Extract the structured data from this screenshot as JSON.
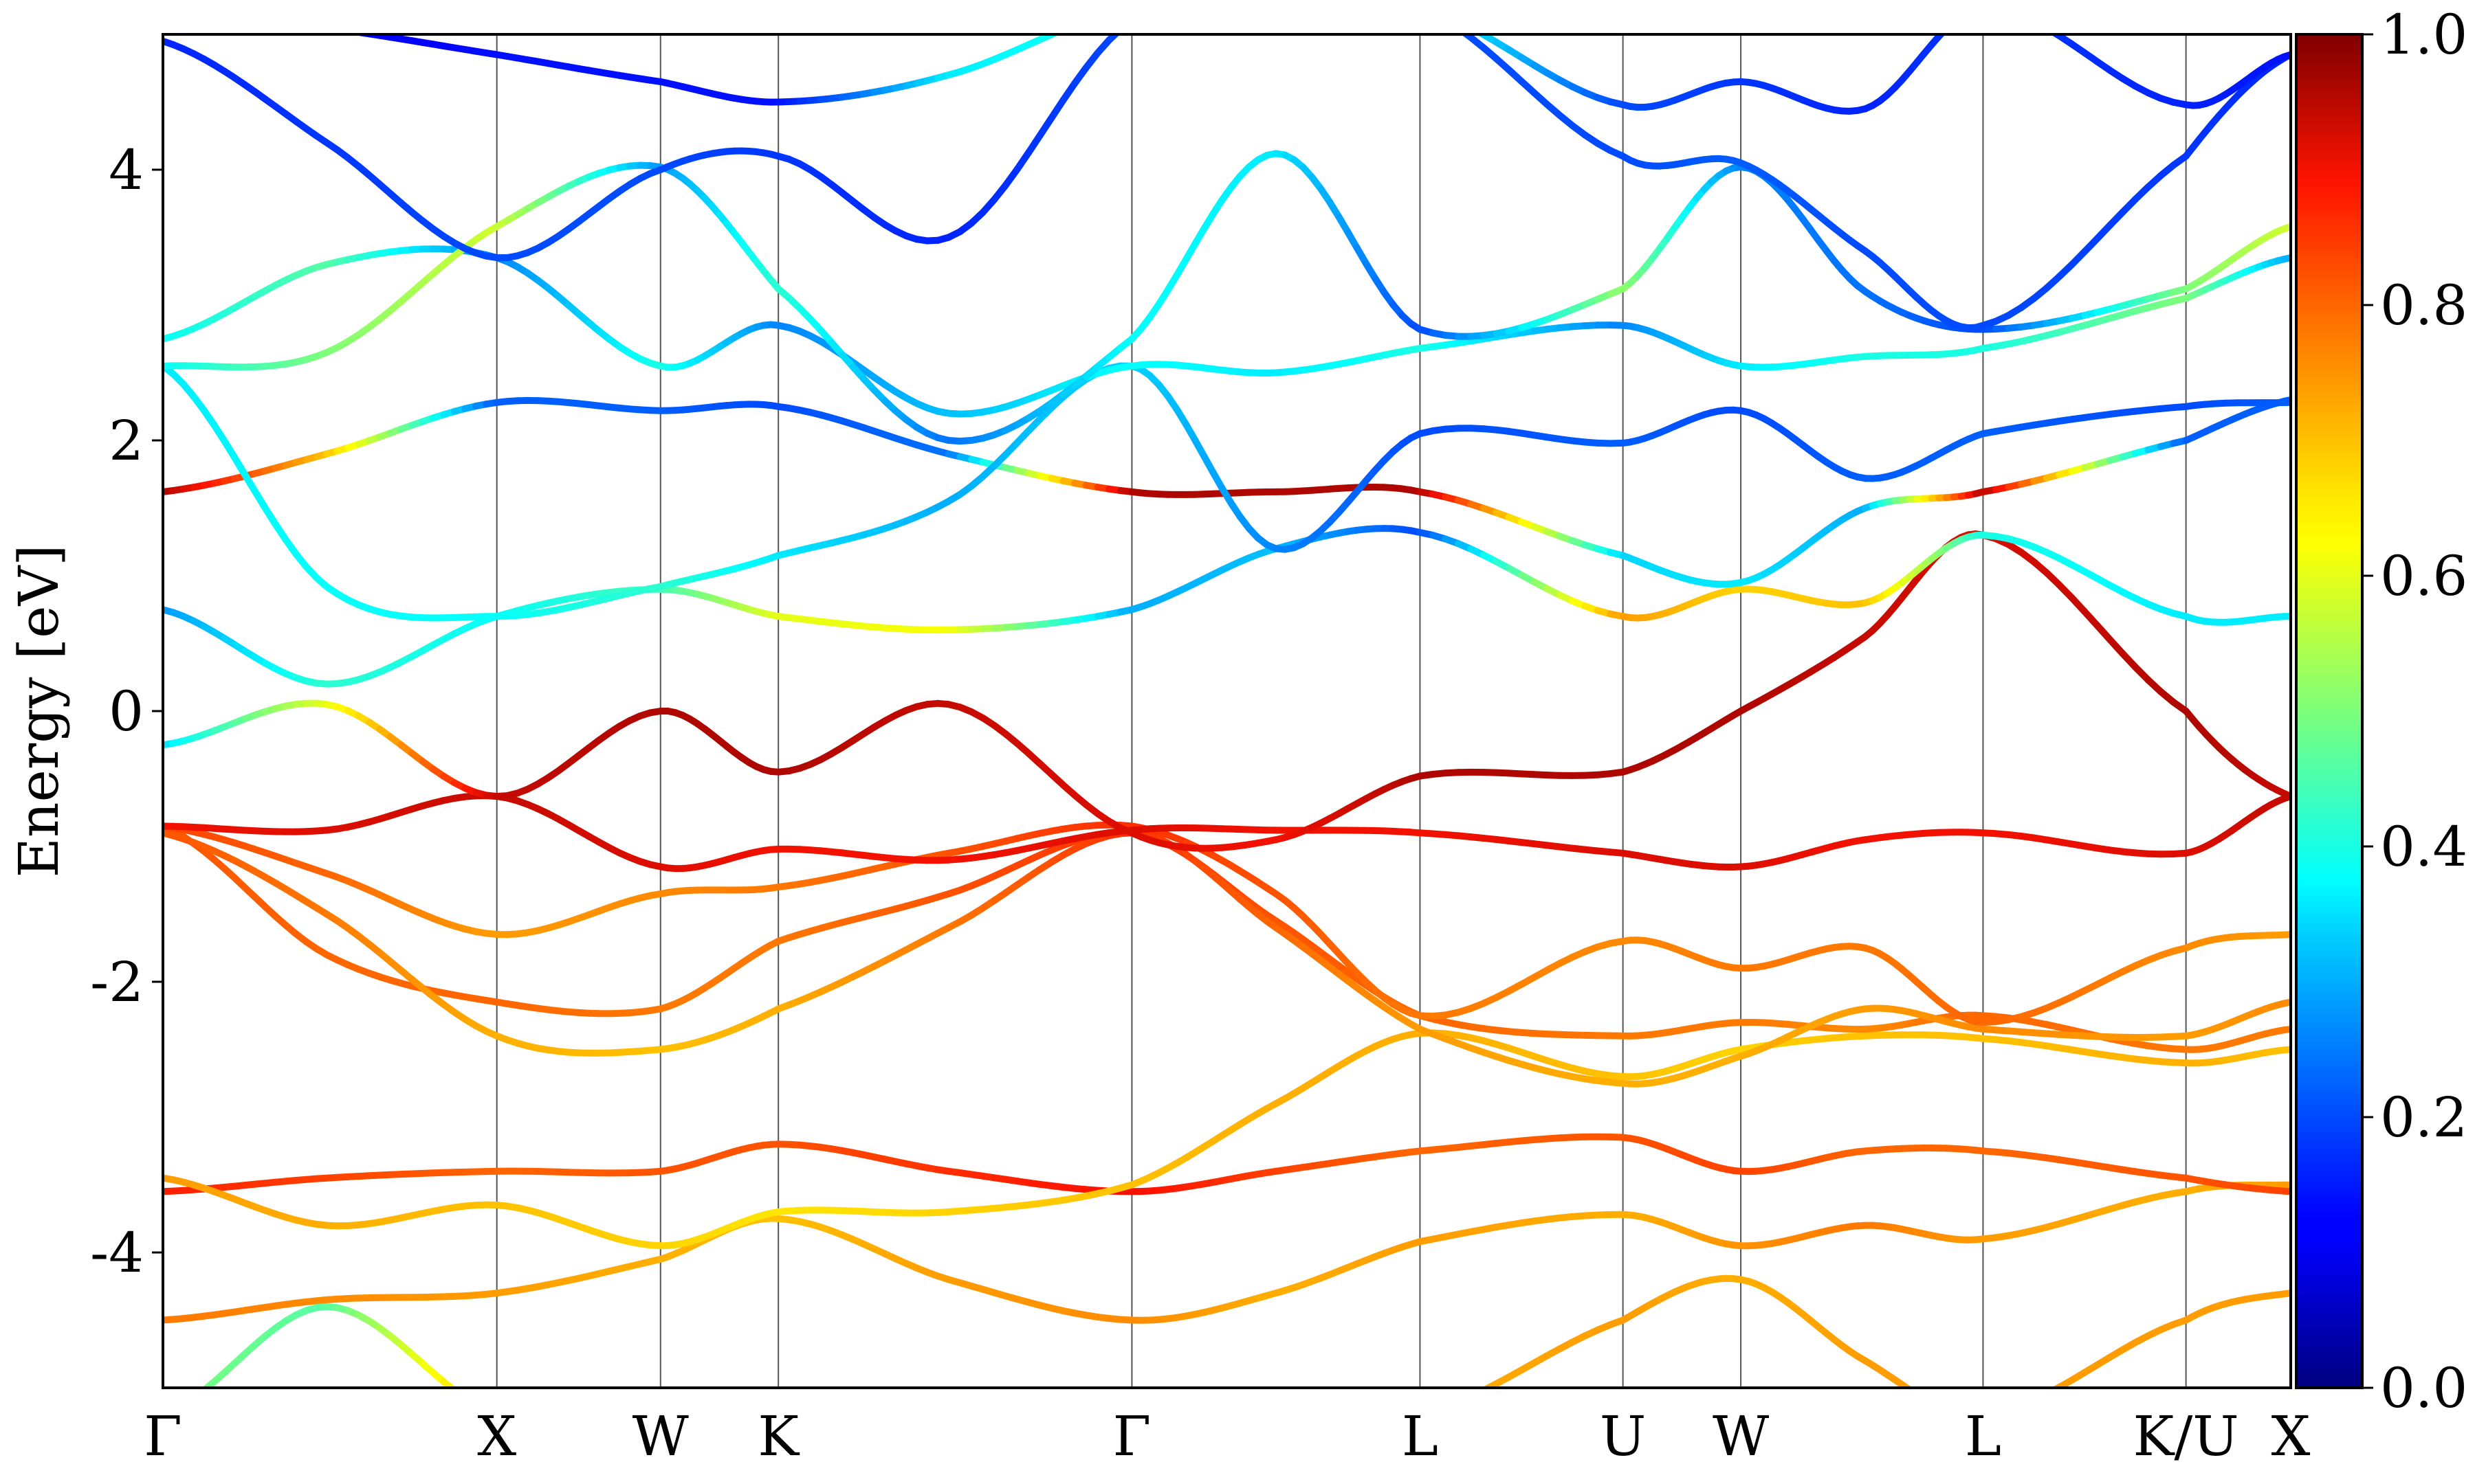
{
  "chart_data": {
    "type": "line",
    "subtype": "band-structure",
    "ylabel": "Energy [eV]",
    "ylim": [
      -5,
      5
    ],
    "yticks": [
      -4,
      -2,
      0,
      2,
      4
    ],
    "ytick_labels": [
      "-4",
      "-2",
      "0",
      "2",
      "4"
    ],
    "x_range": [
      0,
      6.5
    ],
    "high_symmetry_points": [
      {
        "label": "Γ",
        "x": 0.0
      },
      {
        "label": "X",
        "x": 1.02
      },
      {
        "label": "W",
        "x": 1.52
      },
      {
        "label": "K",
        "x": 1.88
      },
      {
        "label": "Γ",
        "x": 2.96
      },
      {
        "label": "L",
        "x": 3.84
      },
      {
        "label": "U",
        "x": 4.46
      },
      {
        "label": "W",
        "x": 4.82
      },
      {
        "label": "L",
        "x": 5.56
      },
      {
        "label": "K/U",
        "x": 6.18
      },
      {
        "label": "X",
        "x": 6.5
      }
    ],
    "colorbar": {
      "range": [
        0.0,
        1.0
      ],
      "ticks": [
        0.0,
        0.2,
        0.4,
        0.6,
        0.8,
        1.0
      ],
      "tick_labels": [
        "0.0",
        "0.2",
        "0.4",
        "0.6",
        "0.8",
        "1.0"
      ],
      "colormap": "jet"
    },
    "bands": [
      {
        "x": [
          0,
          0.5,
          1.02,
          1.52,
          1.88,
          2.4,
          2.96,
          3.4,
          3.84,
          4.46,
          4.82,
          5.2,
          5.56,
          6.18,
          6.5
        ],
        "y": [
          -4.5,
          -4.35,
          -4.3,
          -4.05,
          -3.75,
          -4.2,
          -4.5,
          -4.3,
          -3.92,
          -3.72,
          -3.95,
          -3.8,
          -3.9,
          -3.55,
          -3.5
        ],
        "w": [
          0.78,
          0.76,
          0.74,
          0.72,
          0.7,
          0.74,
          0.76,
          0.72,
          0.74,
          0.72,
          0.75,
          0.78,
          0.74,
          0.72,
          0.74
        ]
      },
      {
        "x": [
          0,
          0.5,
          1.02,
          1.52,
          1.88,
          2.4,
          2.96,
          3.4,
          3.84,
          4.46,
          4.82,
          5.2,
          5.56,
          6.18,
          6.5
        ],
        "y": [
          -3.55,
          -3.45,
          -3.4,
          -3.4,
          -3.2,
          -3.4,
          -3.55,
          -3.4,
          -3.25,
          -3.15,
          -3.4,
          -3.25,
          -3.25,
          -3.45,
          -3.55
        ],
        "w": [
          0.88,
          0.84,
          0.8,
          0.82,
          0.82,
          0.86,
          0.9,
          0.84,
          0.8,
          0.82,
          0.84,
          0.8,
          0.8,
          0.82,
          0.84
        ]
      },
      {
        "x": [
          0,
          0.5,
          1.02,
          1.52,
          1.88,
          2.4,
          2.96,
          3.4,
          3.84,
          4.46,
          4.82,
          5.2,
          5.56,
          6.18,
          6.5
        ],
        "y": [
          -3.45,
          -3.8,
          -3.65,
          -3.95,
          -3.7,
          -3.7,
          -3.5,
          -2.9,
          -2.38,
          -2.7,
          -2.5,
          -2.4,
          -2.42,
          -2.6,
          -2.5
        ],
        "w": [
          0.74,
          0.72,
          0.7,
          0.68,
          0.66,
          0.68,
          0.7,
          0.72,
          0.72,
          0.7,
          0.68,
          0.7,
          0.7,
          0.72,
          0.7
        ]
      },
      {
        "x": [
          0,
          0.5,
          1.02,
          1.52,
          1.88,
          2.4,
          2.96,
          3.4,
          3.84,
          4.46,
          4.82,
          5.2,
          5.56,
          6.18,
          6.5
        ],
        "y": [
          -0.85,
          -1.8,
          -2.15,
          -2.2,
          -1.7,
          -1.35,
          -0.9,
          -1.55,
          -2.25,
          -2.4,
          -2.3,
          -2.35,
          -2.25,
          -2.5,
          -2.35
        ],
        "w": [
          0.82,
          0.8,
          0.8,
          0.78,
          0.78,
          0.82,
          0.86,
          0.82,
          0.8,
          0.78,
          0.78,
          0.76,
          0.8,
          0.78,
          0.78
        ]
      },
      {
        "x": [
          0,
          0.5,
          1.02,
          1.52,
          1.88,
          2.4,
          2.96,
          3.4,
          3.84,
          4.46,
          4.82,
          5.2,
          5.56,
          6.18,
          6.5
        ],
        "y": [
          -0.9,
          -1.5,
          -2.4,
          -2.5,
          -2.2,
          -1.6,
          -0.9,
          -1.6,
          -2.35,
          -2.75,
          -2.55,
          -2.2,
          -2.35,
          -2.4,
          -2.15
        ],
        "w": [
          0.82,
          0.78,
          0.72,
          0.7,
          0.72,
          0.78,
          0.86,
          0.8,
          0.74,
          0.72,
          0.72,
          0.74,
          0.76,
          0.74,
          0.76
        ]
      },
      {
        "x": [
          0,
          0.5,
          1.02,
          1.52,
          1.88,
          2.4,
          2.96,
          3.4,
          3.84,
          4.46,
          4.82,
          5.2,
          5.56,
          6.18,
          6.5
        ],
        "y": [
          -0.85,
          -1.2,
          -1.65,
          -1.35,
          -1.3,
          -1.05,
          -0.85,
          -1.35,
          -2.25,
          -1.7,
          -1.9,
          -1.75,
          -2.3,
          -1.75,
          -1.65
        ],
        "w": [
          0.84,
          0.8,
          0.74,
          0.76,
          0.78,
          0.82,
          0.86,
          0.82,
          0.78,
          0.76,
          0.78,
          0.78,
          0.8,
          0.76,
          0.74
        ]
      },
      {
        "x": [
          0,
          0.5,
          1.02,
          1.52,
          1.88,
          2.4,
          2.96,
          3.4,
          3.84,
          4.46,
          4.82,
          5.2,
          5.56,
          6.18,
          6.5
        ],
        "y": [
          -0.85,
          -0.88,
          -0.63,
          -1.15,
          -1.02,
          -1.1,
          -0.88,
          -0.88,
          -0.9,
          -1.05,
          -1.15,
          -0.95,
          -0.9,
          -1.05,
          -0.63
        ],
        "w": [
          0.9,
          0.92,
          0.94,
          0.92,
          0.9,
          0.9,
          0.92,
          0.9,
          0.9,
          0.92,
          0.92,
          0.9,
          0.9,
          0.92,
          0.94
        ]
      },
      {
        "x": [
          0,
          0.5,
          1.02,
          1.52,
          1.88,
          2.4,
          2.96,
          3.4,
          3.84,
          4.46,
          4.82,
          5.2,
          5.56,
          6.18,
          6.5
        ],
        "y": [
          -0.25,
          0.05,
          -0.63,
          0.0,
          -0.45,
          0.05,
          -0.9,
          -0.95,
          -0.48,
          -0.45,
          0.0,
          0.55,
          1.3,
          0.0,
          -0.63
        ],
        "w": [
          0.35,
          0.6,
          0.94,
          0.96,
          0.96,
          0.94,
          0.92,
          0.9,
          0.96,
          0.96,
          0.96,
          0.94,
          0.92,
          0.96,
          0.94
        ]
      },
      {
        "x": [
          0,
          0.5,
          1.02,
          1.52,
          1.88,
          2.4,
          2.96,
          3.4,
          3.84,
          4.46,
          4.82,
          5.2,
          5.56,
          6.18,
          6.5
        ],
        "y": [
          0.75,
          0.2,
          0.7,
          0.9,
          0.7,
          0.6,
          0.75,
          1.2,
          1.32,
          0.7,
          0.9,
          0.8,
          1.3,
          0.7,
          0.7
        ],
        "w": [
          0.28,
          0.42,
          0.38,
          0.44,
          0.6,
          0.62,
          0.3,
          0.32,
          0.2,
          0.74,
          0.68,
          0.7,
          0.4,
          0.36,
          0.36
        ]
      },
      {
        "x": [
          0,
          0.5,
          1.02,
          1.52,
          1.88,
          2.4,
          2.96,
          3.4,
          3.84,
          4.46,
          4.82,
          5.2,
          5.56,
          6.18,
          6.5
        ],
        "y": [
          1.62,
          1.9,
          2.28,
          2.22,
          2.25,
          1.9,
          1.62,
          1.62,
          1.62,
          1.15,
          0.95,
          1.5,
          1.62,
          2.0,
          2.3
        ],
        "w": [
          0.96,
          0.7,
          0.22,
          0.22,
          0.2,
          0.24,
          0.96,
          0.96,
          0.96,
          0.34,
          0.36,
          0.3,
          0.96,
          0.22,
          0.22
        ]
      },
      {
        "x": [
          0,
          0.5,
          1.02,
          1.52,
          1.88,
          2.4,
          2.96,
          3.4,
          3.84,
          4.46,
          4.82,
          5.2,
          5.56,
          6.18,
          6.5
        ],
        "y": [
          2.55,
          0.92,
          0.7,
          0.92,
          1.15,
          1.55,
          2.55,
          1.2,
          2.05,
          1.98,
          2.22,
          1.72,
          2.05,
          2.25,
          2.28
        ],
        "w": [
          0.36,
          0.38,
          0.38,
          0.42,
          0.36,
          0.3,
          0.34,
          0.26,
          0.2,
          0.22,
          0.2,
          0.22,
          0.22,
          0.2,
          0.22
        ]
      },
      {
        "x": [
          0,
          0.5,
          1.02,
          1.52,
          1.88,
          2.4,
          2.96,
          3.4,
          3.84,
          4.46,
          4.82,
          5.2,
          5.56,
          6.18,
          6.5
        ],
        "y": [
          2.75,
          3.3,
          3.35,
          2.55,
          2.85,
          2.2,
          2.55,
          2.5,
          2.68,
          2.85,
          2.55,
          2.62,
          2.68,
          3.05,
          3.35
        ],
        "w": [
          0.38,
          0.46,
          0.26,
          0.4,
          0.26,
          0.32,
          0.38,
          0.36,
          0.4,
          0.26,
          0.36,
          0.4,
          0.4,
          0.5,
          0.3
        ]
      },
      {
        "x": [
          0,
          0.5,
          1.02,
          1.52,
          1.88,
          2.4,
          2.96,
          3.4,
          3.84,
          4.46,
          4.82,
          5.2,
          5.56,
          6.18,
          6.5
        ],
        "y": [
          2.55,
          2.65,
          3.58,
          4.02,
          3.12,
          2.0,
          2.75,
          4.12,
          2.82,
          3.12,
          4.02,
          3.1,
          2.82,
          3.12,
          3.58
        ],
        "w": [
          0.38,
          0.5,
          0.58,
          0.28,
          0.42,
          0.24,
          0.38,
          0.36,
          0.2,
          0.52,
          0.26,
          0.24,
          0.2,
          0.5,
          0.58
        ]
      },
      {
        "x": [
          0,
          0.5,
          1.02,
          1.52,
          1.88,
          2.4,
          2.96,
          3.4,
          3.84,
          4.46,
          4.82,
          5.2,
          5.56,
          6.18,
          6.5
        ],
        "y": [
          4.95,
          4.2,
          3.35,
          4.0,
          4.1,
          3.5,
          5.1,
          5.2,
          5.2,
          4.1,
          4.05,
          3.4,
          2.85,
          4.1,
          4.85
        ],
        "w": [
          0.16,
          0.18,
          0.2,
          0.2,
          0.18,
          0.16,
          0.2,
          0.2,
          0.2,
          0.2,
          0.22,
          0.2,
          0.2,
          0.18,
          0.16
        ]
      },
      {
        "x": [
          0,
          0.5,
          1.02,
          1.52,
          1.88,
          2.4,
          2.96,
          3.4,
          3.84,
          4.46,
          4.82,
          5.2,
          5.56,
          6.18,
          6.5
        ],
        "y": [
          5.2,
          5.05,
          4.85,
          4.65,
          4.5,
          4.7,
          5.2,
          5.2,
          5.2,
          4.48,
          4.65,
          4.45,
          5.2,
          4.48,
          4.85
        ],
        "w": [
          0.08,
          0.1,
          0.14,
          0.14,
          0.14,
          0.36,
          0.4,
          0.4,
          0.4,
          0.2,
          0.18,
          0.16,
          0.18,
          0.16,
          0.14
        ]
      },
      {
        "x": [
          0,
          0.5,
          1.02,
          1.52,
          1.88,
          2.4,
          2.96,
          3.4,
          3.84,
          4.46,
          4.82,
          5.2,
          5.56,
          6.18,
          6.5
        ],
        "y": [
          -5.2,
          -4.4,
          -5.2,
          -5.2,
          -5.2,
          -5.2,
          -5.2,
          -5.2,
          -5.2,
          -4.5,
          -4.2,
          -4.8,
          -5.2,
          -4.5,
          -4.3
        ],
        "w": [
          0.5,
          0.46,
          0.72,
          0.72,
          0.72,
          0.72,
          0.72,
          0.72,
          0.72,
          0.74,
          0.72,
          0.74,
          0.74,
          0.74,
          0.74
        ]
      }
    ]
  }
}
